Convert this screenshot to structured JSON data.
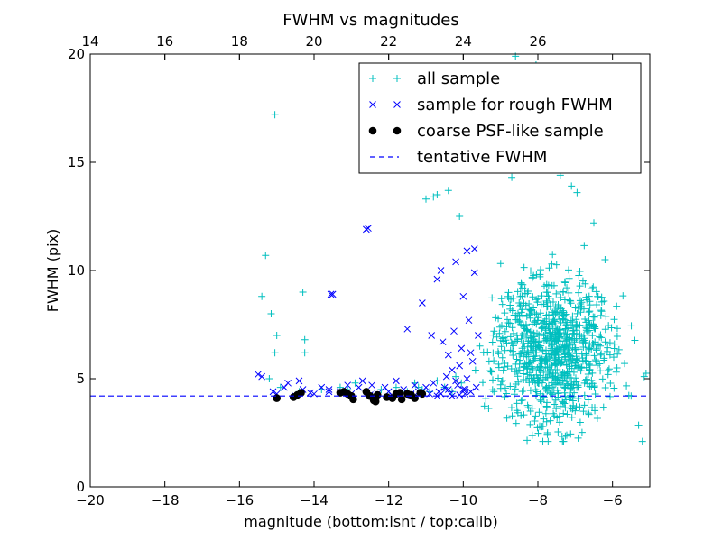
{
  "chart_data": {
    "type": "scatter",
    "title": "FWHM vs magnitudes",
    "xlabel": "magnitude (bottom:isnt / top:calib)",
    "ylabel": "FWHM (pix)",
    "xlim": [
      -20,
      -5
    ],
    "ylim": [
      0,
      20
    ],
    "x_ticks": [
      -20,
      -18,
      -16,
      -14,
      -12,
      -10,
      -8,
      -6
    ],
    "x_tick_labels": [
      "−20",
      "−18",
      "−16",
      "−14",
      "−12",
      "−10",
      "−8",
      "−6"
    ],
    "y_ticks": [
      0,
      5,
      10,
      15,
      20
    ],
    "y_tick_labels": [
      "0",
      "5",
      "10",
      "15",
      "20"
    ],
    "top_axis": {
      "offset_from_bottom": 34.0,
      "ticks": [
        14,
        16,
        18,
        20,
        22,
        24,
        26
      ],
      "tick_labels": [
        "14",
        "16",
        "18",
        "20",
        "22",
        "24",
        "26"
      ]
    },
    "grid": false,
    "legend_position": "top-right",
    "series": [
      {
        "name": "all sample",
        "marker": "plus",
        "color": "#00bfbf",
        "points": [
          [
            -15.4,
            8.8
          ],
          [
            -15.3,
            10.7
          ],
          [
            -15.15,
            8.0
          ],
          [
            -15.05,
            17.2
          ],
          [
            -15.05,
            6.2
          ],
          [
            -15.0,
            7.0
          ],
          [
            -14.3,
            9.0
          ],
          [
            -14.25,
            6.8
          ],
          [
            -14.25,
            6.2
          ],
          [
            -13.1,
            4.5
          ],
          [
            -12.6,
            4.4
          ],
          [
            -11.2,
            4.6
          ],
          [
            -11.0,
            13.3
          ],
          [
            -10.8,
            13.4
          ],
          [
            -10.7,
            13.5
          ],
          [
            -10.4,
            13.7
          ],
          [
            -10.1,
            12.5
          ],
          [
            -15.2,
            5.0
          ],
          [
            -14.9,
            4.6
          ],
          [
            -14.4,
            4.4
          ],
          [
            -13.8,
            4.5
          ],
          [
            -13.3,
            4.6
          ],
          [
            -12.9,
            4.8
          ],
          [
            -12.2,
            4.5
          ],
          [
            -11.8,
            4.6
          ],
          [
            -11.5,
            4.4
          ],
          [
            -11.3,
            4.8
          ],
          [
            -11.1,
            4.5
          ],
          [
            -10.9,
            4.4
          ],
          [
            -10.7,
            4.9
          ],
          [
            -10.5,
            4.6
          ],
          [
            -10.3,
            4.4
          ],
          [
            -10.2,
            5.1
          ],
          [
            -10.05,
            4.8
          ]
        ],
        "cloud": {
          "count": 900,
          "x_range": [
            -10.1,
            -5.1
          ],
          "center": [
            -7.6,
            6.3
          ],
          "y_spread": 1.7,
          "y_range": [
            2.1,
            19.9
          ],
          "seed": 7,
          "extra_points": [
            [
              -8.9,
              16.7
            ],
            [
              -8.6,
              19.9
            ],
            [
              -8.3,
              18.4
            ],
            [
              -8.05,
              19.5
            ],
            [
              -7.9,
              18.7
            ],
            [
              -7.7,
              17.0
            ],
            [
              -9.2,
              15.6
            ],
            [
              -9.4,
              14.8
            ],
            [
              -8.7,
              14.3
            ],
            [
              -7.4,
              14.4
            ],
            [
              -7.1,
              13.9
            ],
            [
              -6.95,
              13.6
            ],
            [
              -6.5,
              12.2
            ],
            [
              -6.2,
              10.5
            ],
            [
              -6.4,
              8.8
            ],
            [
              -5.95,
              6.6
            ],
            [
              -5.3,
              2.85
            ],
            [
              -5.2,
              2.1
            ],
            [
              -5.15,
              5.1
            ],
            [
              -5.1,
              5.25
            ],
            [
              -5.5,
              4.2
            ],
            [
              -5.9,
              5.3
            ]
          ]
        }
      },
      {
        "name": "sample for rough FWHM",
        "marker": "x",
        "color": "#0000ff",
        "points": [
          [
            -15.5,
            5.2
          ],
          [
            -15.4,
            5.1
          ],
          [
            -15.1,
            4.4
          ],
          [
            -15.0,
            4.3
          ],
          [
            -14.8,
            4.6
          ],
          [
            -14.7,
            4.8
          ],
          [
            -14.5,
            4.2
          ],
          [
            -14.4,
            4.9
          ],
          [
            -14.3,
            4.5
          ],
          [
            -14.0,
            4.3
          ],
          [
            -13.8,
            4.6
          ],
          [
            -13.6,
            4.5
          ],
          [
            -13.55,
            8.9
          ],
          [
            -13.5,
            8.9
          ],
          [
            -13.3,
            4.4
          ],
          [
            -13.1,
            4.7
          ],
          [
            -13.0,
            4.3
          ],
          [
            -12.8,
            4.6
          ],
          [
            -12.7,
            4.9
          ],
          [
            -12.6,
            11.9
          ],
          [
            -12.55,
            11.95
          ],
          [
            -12.45,
            4.7
          ],
          [
            -12.3,
            4.3
          ],
          [
            -12.1,
            4.6
          ],
          [
            -12.0,
            4.4
          ],
          [
            -11.8,
            4.9
          ],
          [
            -11.6,
            4.5
          ],
          [
            -11.5,
            7.3
          ],
          [
            -11.4,
            4.3
          ],
          [
            -11.3,
            4.7
          ],
          [
            -11.2,
            4.4
          ],
          [
            -11.1,
            8.5
          ],
          [
            -11.0,
            4.6
          ],
          [
            -10.9,
            4.3
          ],
          [
            -10.85,
            7.0
          ],
          [
            -10.8,
            4.8
          ],
          [
            -10.7,
            9.6
          ],
          [
            -10.65,
            4.4
          ],
          [
            -10.6,
            10.0
          ],
          [
            -10.55,
            6.7
          ],
          [
            -10.5,
            4.6
          ],
          [
            -10.45,
            5.1
          ],
          [
            -10.4,
            6.1
          ],
          [
            -10.35,
            4.3
          ],
          [
            -10.3,
            5.4
          ],
          [
            -10.25,
            7.2
          ],
          [
            -10.2,
            10.4
          ],
          [
            -10.15,
            4.7
          ],
          [
            -10.1,
            5.6
          ],
          [
            -10.05,
            6.4
          ],
          [
            -10.0,
            8.8
          ],
          [
            -9.95,
            4.5
          ],
          [
            -9.9,
            10.9
          ],
          [
            -9.85,
            7.7
          ],
          [
            -9.8,
            4.4
          ],
          [
            -9.75,
            5.8
          ],
          [
            -9.7,
            11.0
          ],
          [
            -9.7,
            9.9
          ],
          [
            -9.65,
            4.6
          ],
          [
            -9.6,
            7.0
          ],
          [
            -10.3,
            4.2
          ],
          [
            -10.6,
            4.3
          ],
          [
            -10.0,
            4.5
          ],
          [
            -9.9,
            5.0
          ],
          [
            -9.8,
            6.2
          ],
          [
            -10.2,
            4.9
          ],
          [
            -10.1,
            4.25
          ],
          [
            -9.95,
            4.3
          ],
          [
            -10.4,
            4.5
          ],
          [
            -10.7,
            4.2
          ],
          [
            -11.4,
            4.25
          ],
          [
            -11.9,
            4.2
          ],
          [
            -12.5,
            4.25
          ],
          [
            -13.6,
            4.4
          ],
          [
            -14.1,
            4.35
          ]
        ]
      },
      {
        "name": "coarse PSF-like sample",
        "marker": "dot",
        "color": "#000000",
        "points": [
          [
            -15.0,
            4.1
          ],
          [
            -14.55,
            4.15
          ],
          [
            -14.45,
            4.25
          ],
          [
            -14.35,
            4.35
          ],
          [
            -13.3,
            4.35
          ],
          [
            -13.2,
            4.4
          ],
          [
            -13.1,
            4.3
          ],
          [
            -13.0,
            4.2
          ],
          [
            -12.95,
            4.05
          ],
          [
            -12.6,
            4.4
          ],
          [
            -12.5,
            4.2
          ],
          [
            -12.4,
            4.0
          ],
          [
            -12.35,
            3.95
          ],
          [
            -12.3,
            4.25
          ],
          [
            -12.05,
            4.15
          ],
          [
            -11.9,
            4.1
          ],
          [
            -11.8,
            4.3
          ],
          [
            -11.7,
            4.35
          ],
          [
            -11.65,
            4.05
          ],
          [
            -11.5,
            4.3
          ],
          [
            -11.4,
            4.25
          ],
          [
            -11.3,
            4.1
          ],
          [
            -11.15,
            4.35
          ],
          [
            -11.1,
            4.3
          ]
        ]
      },
      {
        "name": "tentative FWHM",
        "marker": "dashed-line",
        "color": "#0000ff",
        "y": 4.2
      }
    ]
  }
}
